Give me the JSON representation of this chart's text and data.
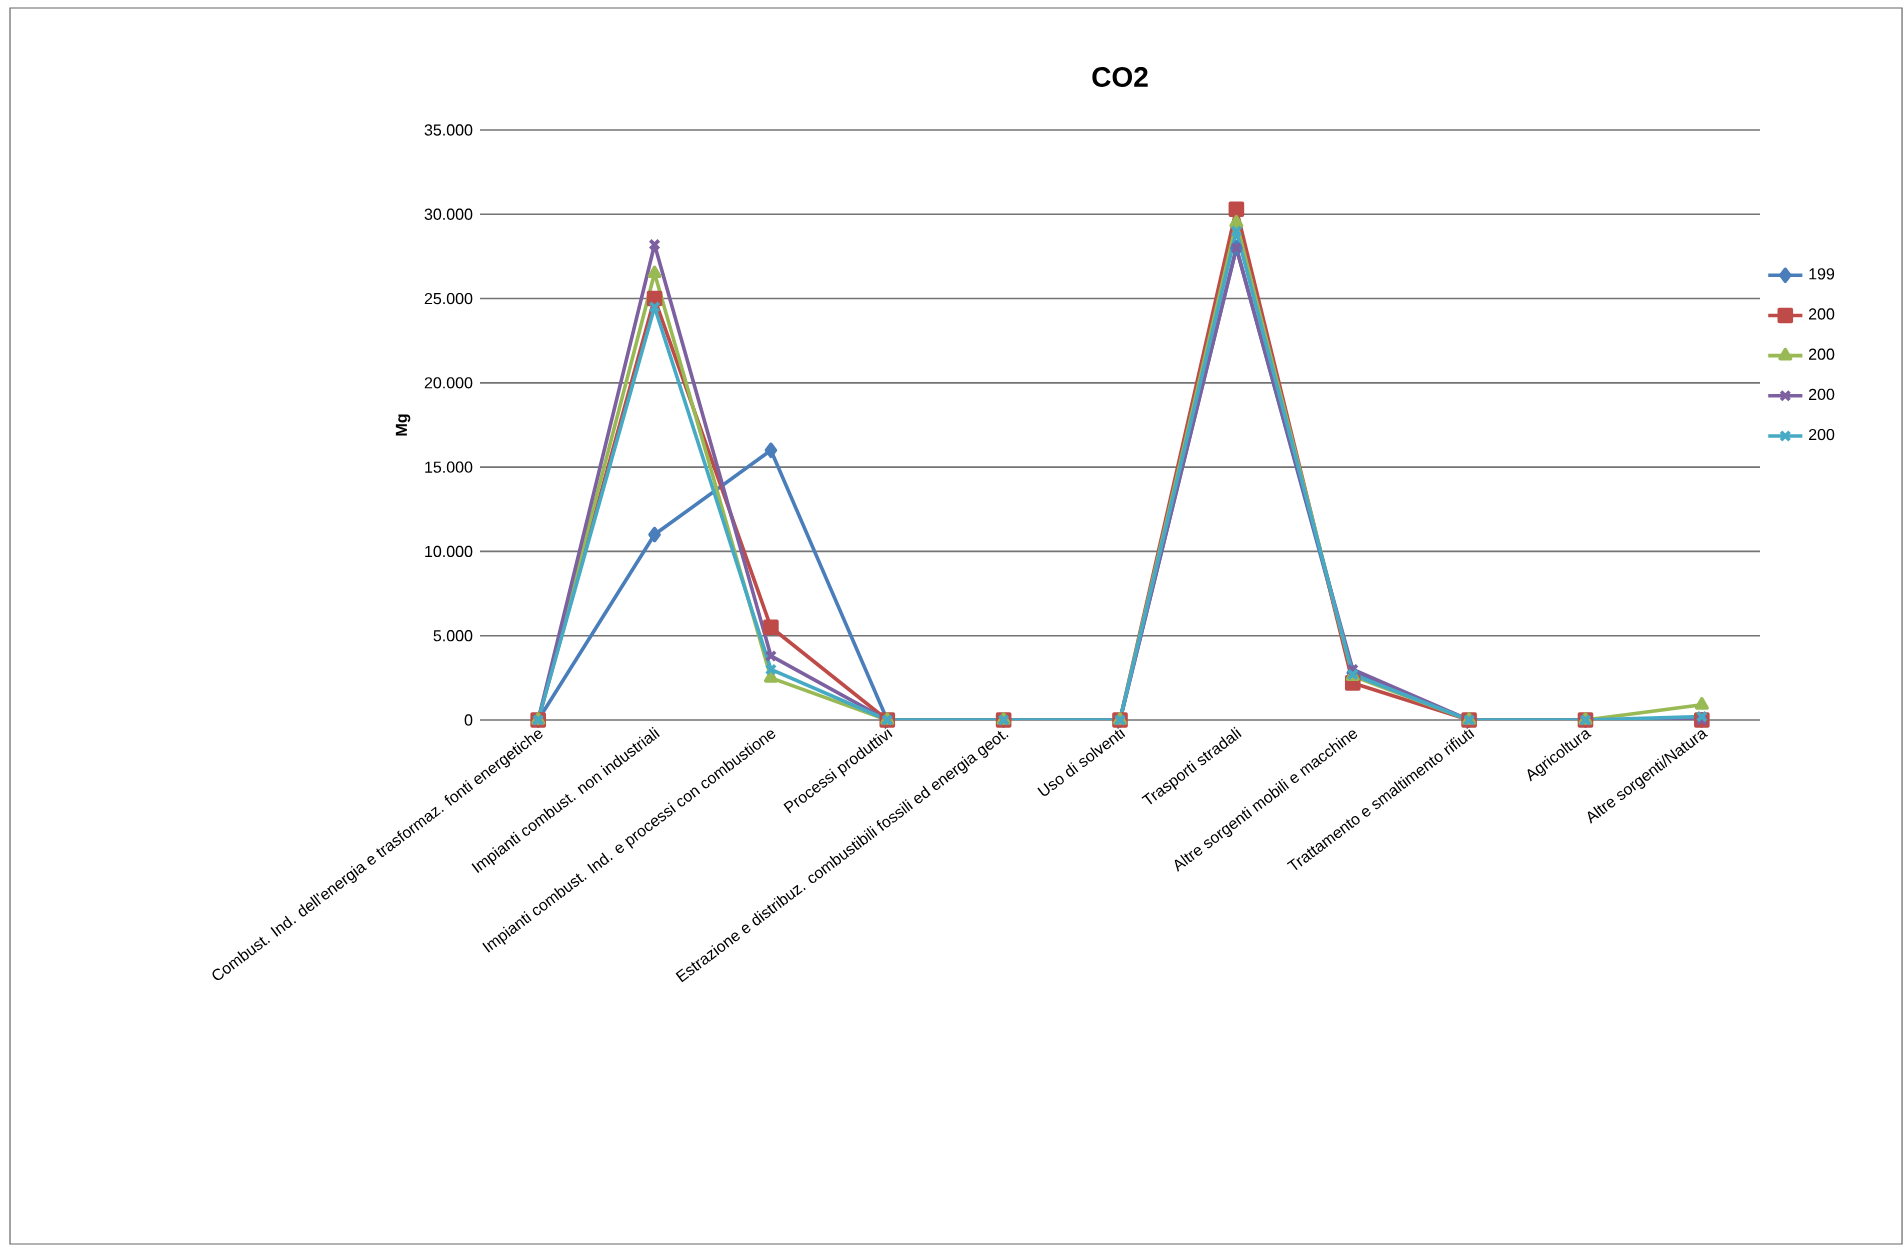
{
  "chart_data": {
    "type": "line",
    "title": "CO2",
    "ylabel": "Mg",
    "categories": [
      "Combust. Ind. dell'energia e trasformaz. fonti energetiche",
      "Impianti combust. non industriali",
      "Impianti combust. Ind. e processi con combustione",
      "Processi produttivi",
      "Estrazione e distribuz. combustibili fossili ed energia geot.",
      "Uso di solventi",
      "Trasporti stradali",
      "Altre sorgenti mobili e macchine",
      "Trattamento e smaltimento rifiuti",
      "Agricoltura",
      "Altre sorgenti/Natura"
    ],
    "series": [
      {
        "name": "199",
        "color": "#4a7ebb",
        "marker": "diamond",
        "values": [
          0,
          11000,
          16000,
          0,
          0,
          0,
          28000,
          2800,
          0,
          0,
          0
        ]
      },
      {
        "name": "200",
        "color": "#be4b48",
        "marker": "square",
        "values": [
          0,
          25000,
          5500,
          0,
          0,
          0,
          30300,
          2200,
          0,
          0,
          0
        ]
      },
      {
        "name": "200",
        "color": "#98b954",
        "marker": "triangle",
        "values": [
          0,
          26500,
          2500,
          0,
          0,
          0,
          29500,
          2600,
          0,
          0,
          900
        ]
      },
      {
        "name": "200",
        "color": "#7d60a0",
        "marker": "cross",
        "values": [
          0,
          28200,
          3800,
          0,
          0,
          0,
          28000,
          3000,
          0,
          0,
          0
        ]
      },
      {
        "name": "200",
        "color": "#46aac5",
        "marker": "cross",
        "values": [
          0,
          24500,
          3000,
          0,
          0,
          0,
          29000,
          2700,
          0,
          0,
          200
        ]
      }
    ],
    "ylim": [
      0,
      35000
    ],
    "yticks": [
      {
        "value": 0,
        "label": "0"
      },
      {
        "value": 5000,
        "label": "5.000"
      },
      {
        "value": 10000,
        "label": "10.000"
      },
      {
        "value": 15000,
        "label": "15.000"
      },
      {
        "value": 20000,
        "label": "20.000"
      },
      {
        "value": 25000,
        "label": "25.000"
      },
      {
        "value": 30000,
        "label": "30.000"
      },
      {
        "value": 35000,
        "label": "35.000"
      }
    ],
    "grid": "y",
    "legend": "right",
    "line_style": "solid"
  }
}
